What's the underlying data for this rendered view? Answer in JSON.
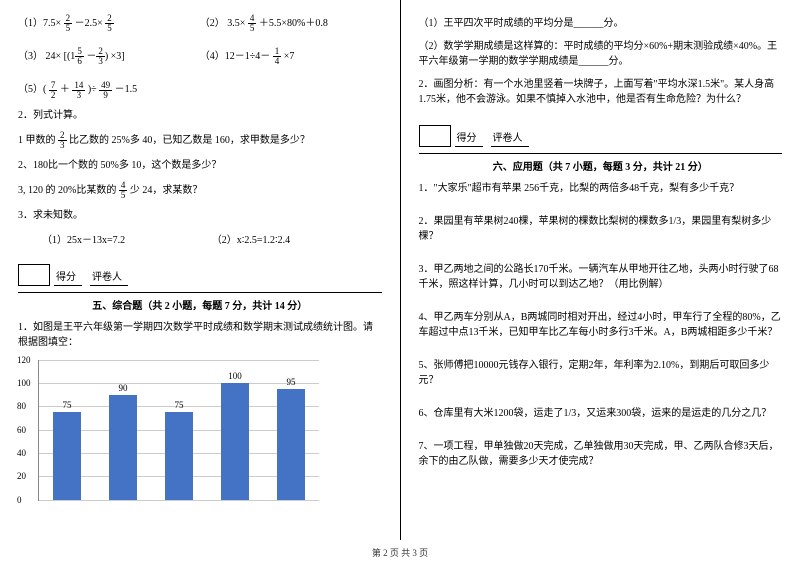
{
  "left": {
    "eq1a_pre": "（1）7.5×",
    "eq1a_n": "2",
    "eq1a_d": "5",
    "eq1a_mid": "－2.5×",
    "eq1b_pre": "（2）  3.5×",
    "eq1b_n": "4",
    "eq1b_d": "5",
    "eq1b_post": "＋5.5×80%＋0.8",
    "eq3_pre": "（3）  24×",
    "eq3_n1": "5",
    "eq3_d1": "6",
    "eq3_n2": "2",
    "eq3_d2": "3",
    "eq3_post": "×3",
    "eq4_pre": "（4）12－1÷4－",
    "eq4_n": "1",
    "eq4_d": "4",
    "eq4_post": "×7",
    "eq5_n1": "7",
    "eq5_d1": "2",
    "eq5_n2": "14",
    "eq5_d2": "3",
    "eq5_n3": "49",
    "eq5_d3": "9",
    "eq5_post": "－1.5",
    "q2_title": "2．列式计算。",
    "q2_1a": "1 甲数的",
    "q2_1n": "2",
    "q2_1d": "3",
    "q2_1b": "比乙数的 25%多 40，已知乙数是 160，求甲数是多少？",
    "q2_2": "2、180比一个数的 50%多 10，这个数是多少？",
    "q2_3a": "3, 120 的 20%比某数的",
    "q2_3n": "4",
    "q2_3d": "5",
    "q2_3b": "少 24，求某数？",
    "q3_title": "3．求未知数。",
    "q3_1": "（1）25x－13x=7.2",
    "q3_2": "（2）x∶2.5=1.2∶2.4",
    "score_label1": "得分",
    "score_label2": "评卷人",
    "section5": "五、综合题（共 2 小题，每题 7 分，共计 14 分）",
    "s5_q1": "1．如图是王平六年级第一学期四次数学平时成绩和数学期末测试成绩统计图。请根据图填空：",
    "chart": {
      "type": "bar",
      "values": [
        75,
        90,
        75,
        100,
        95
      ],
      "bar_color": "#4472c4",
      "ymax": 120,
      "ytick_step": 20,
      "grid_color": "#cccccc"
    }
  },
  "right": {
    "r1": "（1）王平四次平时成绩的平均分是______分。",
    "r2": "（2）数学学期成绩是这样算的：平时成绩的平均分×60%+期末测验成绩×40%。王平六年级第一学期的数学学期成绩是______分。",
    "r3": "2．画图分析：有一个水池里竖着一块牌子，上面写着\"平均水深1.5米\"。某人身高1.75米，他不会游泳。如果不慎掉入水池中，他是否有生命危险？为什么？",
    "score_label1": "得分",
    "score_label2": "评卷人",
    "section6": "六、应用题（共 7 小题，每题 3 分，共计 21 分）",
    "s6_1": "1．\"大家乐\"超市有苹果 256千克，比梨的两倍多48千克，梨有多少千克？",
    "s6_2": "2．果园里有苹果树240棵，苹果树的棵数比梨树的棵数多1/3，果园里有梨树多少棵？",
    "s6_3": "3．甲乙两地之间的公路长170千米。一辆汽车从甲地开往乙地，头两小时行驶了68千米，照这样计算，几小时可以到达乙地？（用比例解）",
    "s6_4": "4、甲乙两车分别从A，B两城同时相对开出，经过4小时，甲车行了全程的80%，乙车超过中点13千米，已知甲车比乙车每小时多行3千米。A，B两城相距多少千米？",
    "s6_5": "5、张师傅把10000元钱存入银行，定期2年，年利率为2.10%，到期后可取回多少元？",
    "s6_6": "6、仓库里有大米1200袋，运走了1/3，又运来300袋，运来的是运走的几分之几？",
    "s6_7": "7、一项工程，甲单独做20天完成，乙单独做用30天完成，甲、乙两队合修3天后，余下的由乙队做，需要多少天才使完成？"
  },
  "footer": "第 2 页 共 3 页"
}
